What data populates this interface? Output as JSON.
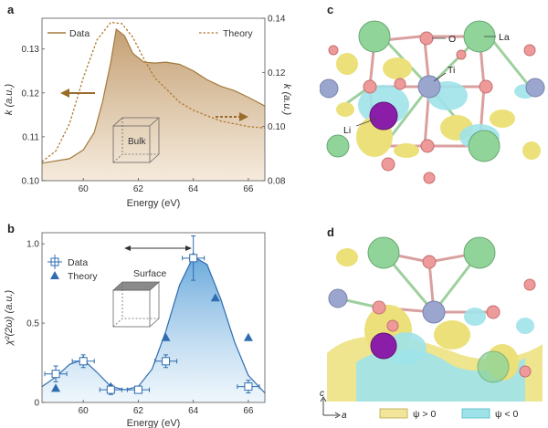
{
  "panel_labels": {
    "a": "a",
    "b": "b",
    "c": "c",
    "d": "d"
  },
  "colors": {
    "data_brown": "#a37a3c",
    "fill_brown": "#c9a77c",
    "theory_brown": "#b07a32",
    "blue": "#2f6db0",
    "fill_blue": "#9cc6e6",
    "psi_pos": "#f0e59a",
    "psi_neg": "#9fe3ea"
  },
  "panel_a": {
    "legend_data": "Data",
    "legend_theory": "Theory",
    "box_label": "Bulk"
  },
  "panel_b": {
    "legend_data": "Data",
    "legend_theory": "Theory",
    "box_label": "Surface"
  },
  "panel_c": {
    "atom_O": "O",
    "atom_La": "La",
    "atom_Ti": "Ti",
    "atom_Li": "Li"
  },
  "panel_d": {
    "axis_c": "c",
    "axis_a": "a",
    "psi_pos": "ψ > 0",
    "psi_neg": "ψ < 0"
  },
  "chart_data": [
    {
      "type": "area",
      "panel": "a",
      "xlabel": "Energy (eV)",
      "ylabel": "k (a.u.)",
      "y2label": "k (a.u.)",
      "xlim": [
        58.5,
        66.6
      ],
      "ylim": [
        0.1,
        0.137
      ],
      "y2lim": [
        0.08,
        0.14
      ],
      "x_ticks": [
        "60",
        "62",
        "64",
        "66"
      ],
      "y_ticks": [
        "0.10",
        "0.11",
        "0.12",
        "0.13"
      ],
      "y2_ticks": [
        "0.08",
        "0.10",
        "0.12",
        "0.14"
      ],
      "series": [
        {
          "name": "Data",
          "axis": "left",
          "x": [
            58.5,
            59.5,
            60.0,
            60.4,
            60.7,
            61.0,
            61.2,
            61.5,
            61.8,
            62.2,
            62.6,
            63.0,
            63.5,
            64.0,
            64.5,
            65.0,
            65.5,
            66.0,
            66.6
          ],
          "y": [
            0.104,
            0.105,
            0.107,
            0.111,
            0.118,
            0.127,
            0.1345,
            0.133,
            0.129,
            0.127,
            0.1268,
            0.127,
            0.1265,
            0.125,
            0.123,
            0.1215,
            0.1205,
            0.119,
            0.117
          ]
        },
        {
          "name": "Theory",
          "axis": "right",
          "x": [
            58.5,
            59.0,
            59.5,
            60.0,
            60.5,
            61.0,
            61.4,
            61.8,
            62.2,
            62.6,
            63.0,
            63.5,
            64.0,
            64.5,
            65.0,
            65.5,
            66.0,
            66.6
          ],
          "y": [
            0.087,
            0.091,
            0.101,
            0.118,
            0.132,
            0.1385,
            0.138,
            0.133,
            0.125,
            0.118,
            0.114,
            0.109,
            0.106,
            0.104,
            0.102,
            0.101,
            0.1,
            0.0995
          ]
        }
      ]
    },
    {
      "type": "scatter",
      "panel": "b",
      "xlabel": "Energy (eV)",
      "ylabel": "χ²(2ω) (a.u.)",
      "xlim": [
        58.5,
        66.6
      ],
      "ylim": [
        0,
        1.07
      ],
      "x_ticks": [
        "60",
        "62",
        "64",
        "66"
      ],
      "y_ticks": [
        "0",
        "0.5",
        "1.0"
      ],
      "series": [
        {
          "name": "Data",
          "x": [
            59.0,
            60.0,
            61.0,
            62.0,
            63.0,
            64.0,
            66.0
          ],
          "y": [
            0.18,
            0.26,
            0.08,
            0.08,
            0.26,
            0.91,
            0.1
          ],
          "yerr": [
            0.05,
            0.04,
            0.03,
            0.02,
            0.04,
            0.14,
            0.04
          ],
          "xerr": [
            0.4,
            0.4,
            0.4,
            0.4,
            0.4,
            0.4,
            0.4
          ]
        },
        {
          "name": "Theory",
          "x": [
            59.0,
            60.0,
            61.0,
            62.0,
            63.0,
            64.0,
            64.8,
            66.0
          ],
          "y": [
            0.09,
            0.27,
            0.1,
            0.08,
            0.41,
            0.92,
            0.66,
            0.41
          ]
        },
        {
          "name": "fit",
          "x": [
            58.5,
            59.0,
            59.5,
            60.0,
            60.5,
            61.0,
            61.5,
            62.0,
            62.5,
            63.0,
            63.5,
            64.0,
            64.5,
            65.0,
            65.5,
            66.0,
            66.6
          ],
          "y": [
            0.1,
            0.16,
            0.24,
            0.27,
            0.19,
            0.1,
            0.08,
            0.1,
            0.21,
            0.45,
            0.74,
            0.92,
            0.87,
            0.65,
            0.38,
            0.17,
            0.06
          ]
        }
      ]
    }
  ]
}
